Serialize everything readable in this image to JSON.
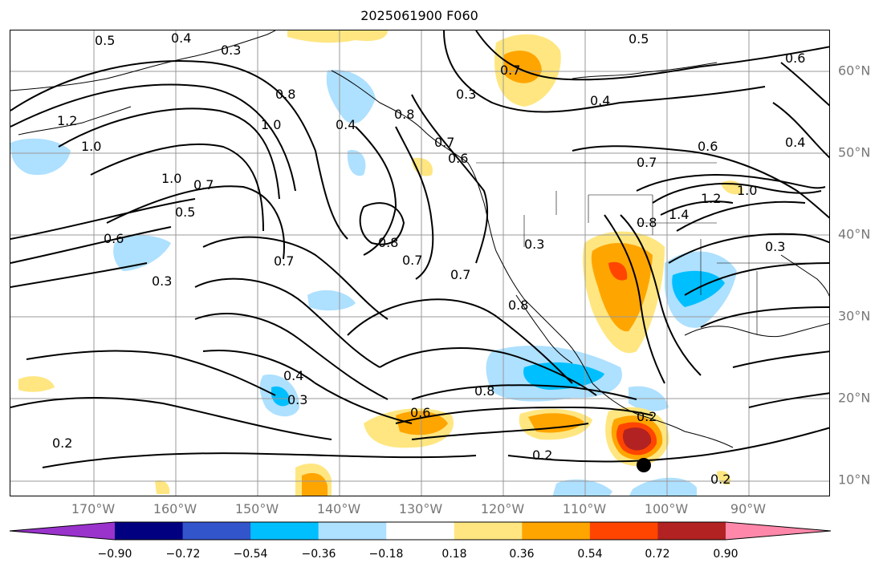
{
  "title": "2025061900 F060",
  "lon_labels": [
    "170°W",
    "160°W",
    "150°W",
    "140°W",
    "130°W",
    "120°W",
    "110°W",
    "100°W",
    "90°W"
  ],
  "lat_labels": [
    "60°N",
    "50°N",
    "40°N",
    "30°N",
    "20°N",
    "10°N"
  ],
  "colorbar": {
    "tick_labels": [
      "−0.90",
      "−0.72",
      "−0.54",
      "−0.36",
      "−0.18",
      "0.18",
      "0.36",
      "0.54",
      "0.72",
      "0.90"
    ],
    "colors": [
      "#9933cc",
      "#000080",
      "#3355cc",
      "#00bfff",
      "#aee0ff",
      "#ffffff",
      "#ffe680",
      "#ffa500",
      "#ff4500",
      "#b22222",
      "#ff88aa"
    ]
  },
  "contour_labels": [
    "0.5",
    "0.4",
    "0.3",
    "0.8",
    "1.0",
    "0.4",
    "0.5",
    "0.3",
    "0.7",
    "0.4",
    "1.2",
    "1.0",
    "1.0",
    "0.7",
    "0.5",
    "0.6",
    "0.8",
    "0.7",
    "0.3",
    "0.7",
    "0.8",
    "0.3",
    "0.4",
    "0.3",
    "0.8",
    "0.6",
    "0.2",
    "0.2",
    "0.7",
    "1.4",
    "1.2",
    "1.0",
    "0.6",
    "0.7",
    "0.8",
    "0.3",
    "0.6",
    "0.4",
    "0.2",
    "0.6",
    "0.7",
    "0.2",
    "0.8"
  ]
}
